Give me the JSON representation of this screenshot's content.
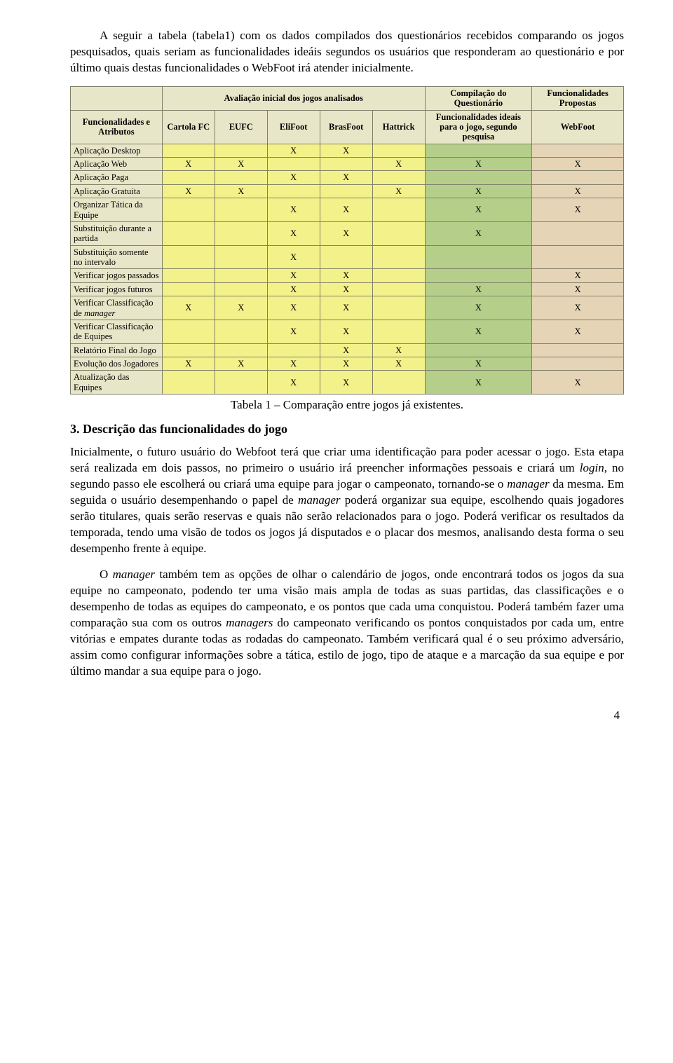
{
  "colors": {
    "header_bg": "#e8e6c8",
    "attr_bg": "#e8e6c8",
    "eval_bg": "#f3f28a",
    "comp_bg": "#b5cf8a",
    "prop_bg": "#e5d4b5",
    "border": "#807f68",
    "text": "#000000",
    "page_bg": "#ffffff"
  },
  "para1": "A seguir a tabela (tabela1) com os dados compilados dos questionários recebidos comparando os jogos pesquisados, quais seriam as funcionalidades ideáis segundos os usuários que responderam ao questionário e por último quais destas funcionalidades o WebFoot irá atender inicialmente.",
  "table": {
    "top_headers": {
      "eval": "Avaliação inicial dos jogos analisados",
      "comp": "Compilação do Questionário",
      "prop": "Funcionalidades Propostas"
    },
    "headers": {
      "attr": "Funcionalidades e Atributos",
      "c1": "Cartola FC",
      "c2": "EUFC",
      "c3": "EliFoot",
      "c4": "BrasFoot",
      "c5": "Hattrick",
      "comp": "Funcionalidades ideais para o jogo, segundo pesquisa",
      "prop": "WebFoot"
    },
    "rows": [
      {
        "label": "Aplicação Desktop",
        "c1": "",
        "c2": "",
        "c3": "X",
        "c4": "X",
        "c5": "",
        "comp": "",
        "prop": ""
      },
      {
        "label": "Aplicação Web",
        "c1": "X",
        "c2": "X",
        "c3": "",
        "c4": "",
        "c5": "X",
        "comp": "X",
        "prop": "X"
      },
      {
        "label": "Aplicação Paga",
        "c1": "",
        "c2": "",
        "c3": "X",
        "c4": "X",
        "c5": "",
        "comp": "",
        "prop": ""
      },
      {
        "label": "Aplicação Gratuita",
        "c1": "X",
        "c2": "X",
        "c3": "",
        "c4": "",
        "c5": "X",
        "comp": "X",
        "prop": "X"
      },
      {
        "label": "Organizar Tática da Equipe",
        "c1": "",
        "c2": "",
        "c3": "X",
        "c4": "X",
        "c5": "",
        "comp": "X",
        "prop": "X"
      },
      {
        "label": "Substituição durante a partida",
        "c1": "",
        "c2": "",
        "c3": "X",
        "c4": "X",
        "c5": "",
        "comp": "X",
        "prop": ""
      },
      {
        "label": "Substituição somente no intervalo",
        "c1": "",
        "c2": "",
        "c3": "X",
        "c4": "",
        "c5": "",
        "comp": "",
        "prop": ""
      },
      {
        "label": "Verificar jogos passados",
        "c1": "",
        "c2": "",
        "c3": "X",
        "c4": "X",
        "c5": "",
        "comp": "",
        "prop": "X"
      },
      {
        "label": "Verificar jogos futuros",
        "c1": "",
        "c2": "",
        "c3": "X",
        "c4": "X",
        "c5": "",
        "comp": "X",
        "prop": "X"
      },
      {
        "label": "Verificar Classificação de manager",
        "c1": "X",
        "c2": "X",
        "c3": "X",
        "c4": "X",
        "c5": "",
        "comp": "X",
        "prop": "X"
      },
      {
        "label": "Verificar Classificação de Equipes",
        "c1": "",
        "c2": "",
        "c3": "X",
        "c4": "X",
        "c5": "",
        "comp": "X",
        "prop": "X"
      },
      {
        "label": "Relatório Final do Jogo",
        "c1": "",
        "c2": "",
        "c3": "",
        "c4": "X",
        "c5": "X",
        "comp": "",
        "prop": ""
      },
      {
        "label": "Evolução dos Jogadores",
        "c1": "X",
        "c2": "X",
        "c3": "X",
        "c4": "X",
        "c5": "X",
        "comp": "X",
        "prop": ""
      },
      {
        "label": "Atualização das Equipes",
        "c1": "",
        "c2": "",
        "c3": "X",
        "c4": "X",
        "c5": "",
        "comp": "X",
        "prop": "X"
      }
    ]
  },
  "caption": "Tabela 1 – Comparação entre jogos já existentes.",
  "section_heading": "3. Descrição das funcionalidades do jogo",
  "para2": "Inicialmente, o futuro usuário do Webfoot terá que criar uma identificação para poder acessar o jogo. Esta etapa será realizada em dois passos, no primeiro o usuário irá preencher informações pessoais e criará um login, no segundo passo ele escolherá ou criará uma equipe para jogar o campeonato, tornando-se o manager da mesma. Em seguida o usuário desempenhando o papel de manager poderá organizar sua equipe, escolhendo quais jogadores serão titulares, quais serão reservas e quais não serão relacionados para o jogo. Poderá verificar os resultados da temporada, tendo uma visão de todos os jogos já disputados e o placar dos mesmos, analisando desta forma o seu desempenho frente à equipe.",
  "para3": "O manager também tem as opções de olhar o calendário de jogos, onde encontrará todos os jogos da sua equipe no campeonato, podendo ter uma visão mais ampla de todas as suas partidas, das classificações e o desempenho de todas as equipes do campeonato, e os pontos que cada uma conquistou. Poderá também fazer uma comparação sua com os outros managers do campeonato verificando os pontos conquistados por cada um, entre vitórias e empates durante todas as rodadas do campeonato. Também verificará qual é o seu próximo adversário, assim como configurar informações sobre a tática, estilo de jogo, tipo de ataque e a marcação da sua equipe e por último mandar a sua equipe para o jogo.",
  "page_number": "4"
}
